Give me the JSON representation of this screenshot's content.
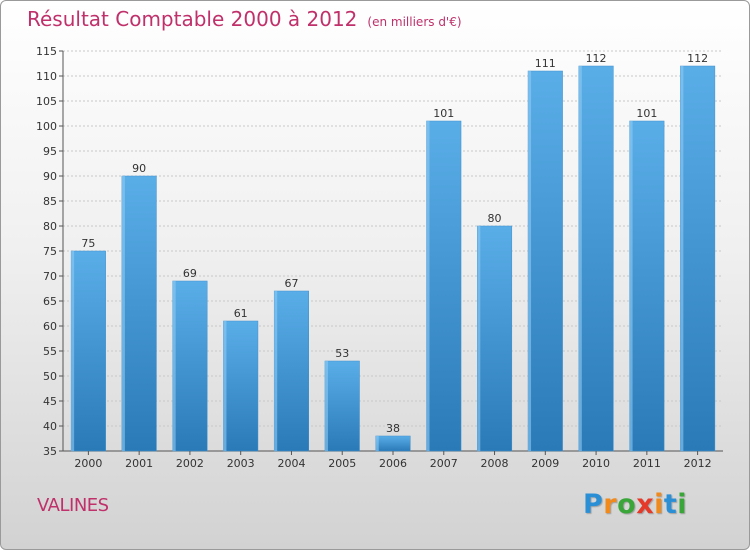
{
  "chart_data": {
    "type": "bar",
    "title": "Résultat Comptable 2000 à 2012",
    "subtitle": "(en milliers d'€)",
    "categories": [
      "2000",
      "2001",
      "2002",
      "2003",
      "2004",
      "2005",
      "2006",
      "2007",
      "2008",
      "2009",
      "2010",
      "2011",
      "2012"
    ],
    "values": [
      75,
      90,
      69,
      61,
      67,
      53,
      38,
      101,
      80,
      111,
      112,
      101,
      112
    ],
    "ylim": [
      35,
      115
    ],
    "yticks": [
      35,
      40,
      45,
      50,
      55,
      60,
      65,
      70,
      75,
      80,
      85,
      90,
      95,
      100,
      105,
      110,
      115
    ],
    "grid": true,
    "bar_color_top": "#5aaee8",
    "bar_color_bottom": "#2a7ab8"
  },
  "footer": {
    "commune": "VALINES",
    "logo_letters": [
      {
        "char": "P",
        "color": "#2b8fd6"
      },
      {
        "char": "r",
        "color": "#f08a1c"
      },
      {
        "char": "o",
        "color": "#3aa63a"
      },
      {
        "char": "x",
        "color": "#e53a2a"
      },
      {
        "char": "i",
        "color": "#f08a1c"
      },
      {
        "char": "t",
        "color": "#2b8fd6"
      },
      {
        "char": "i",
        "color": "#3aa63a"
      }
    ]
  }
}
